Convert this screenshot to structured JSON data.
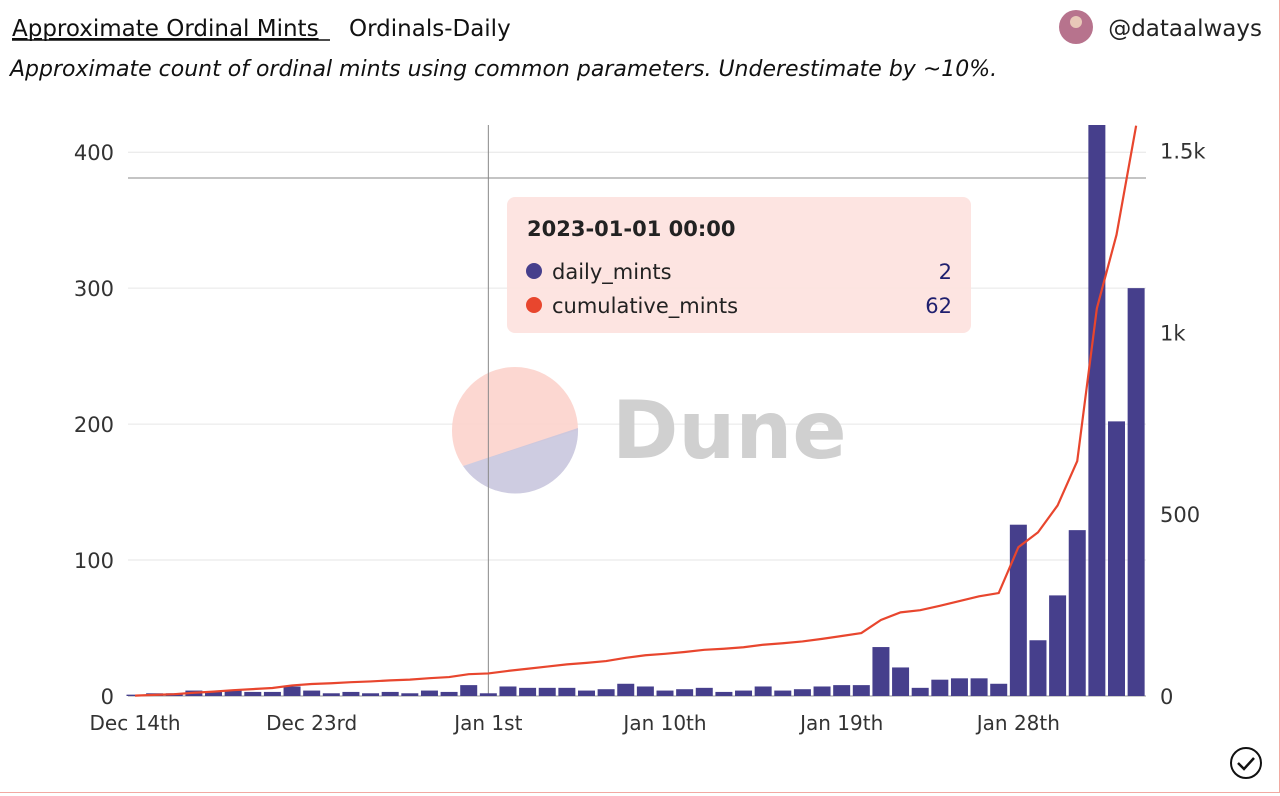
{
  "header": {
    "title": "Approximate Ordinal Mints",
    "tab": "Ordinals-Daily",
    "author": "@dataalways",
    "subtitle": "Approximate count of ordinal mints using common parameters. Underestimate by ~10%."
  },
  "chart_data": {
    "type": "bar-line",
    "categories": [
      "Dec 14th",
      null,
      null,
      null,
      null,
      null,
      null,
      null,
      null,
      "Dec 23rd",
      null,
      null,
      null,
      null,
      null,
      null,
      null,
      null,
      "Jan 1st",
      null,
      null,
      null,
      null,
      null,
      null,
      null,
      null,
      "Jan 10th",
      null,
      null,
      null,
      null,
      null,
      null,
      null,
      null,
      "Jan 19th",
      null,
      null,
      null,
      null,
      null,
      null,
      null,
      null,
      "Jan 28th",
      null,
      null,
      null,
      null,
      null,
      null
    ],
    "series": [
      {
        "name": "daily_mints",
        "color": "#463f8c",
        "kind": "bar",
        "values": [
          1,
          2,
          2,
          4,
          3,
          4,
          3,
          3,
          7,
          4,
          2,
          3,
          2,
          3,
          2,
          4,
          3,
          8,
          2,
          7,
          6,
          6,
          6,
          4,
          5,
          9,
          7,
          4,
          5,
          6,
          3,
          4,
          7,
          4,
          5,
          7,
          8,
          8,
          36,
          21,
          6,
          12,
          13,
          13,
          9,
          126,
          41,
          74,
          122,
          420,
          202,
          300
        ]
      },
      {
        "name": "cumulative_mints",
        "color": "#e8462e",
        "kind": "line",
        "axis": "y2",
        "values": [
          1,
          3,
          5,
          9,
          12,
          16,
          19,
          22,
          29,
          33,
          35,
          38,
          40,
          43,
          45,
          49,
          52,
          60,
          62,
          69,
          75,
          81,
          87,
          91,
          96,
          105,
          112,
          116,
          121,
          127,
          130,
          134,
          141,
          145,
          150,
          157,
          165,
          173,
          209,
          230,
          236,
          248,
          261,
          274,
          283,
          409,
          450,
          524,
          646,
          1066,
          1268,
          1568
        ]
      }
    ],
    "ylim": [
      0,
      420
    ],
    "yticks": [
      0,
      100,
      200,
      300,
      400
    ],
    "y2lim": [
      0,
      1570
    ],
    "y2ticks": [
      0,
      500,
      {
        "value": 1000,
        "label": "1k"
      },
      {
        "value": 1500,
        "label": "1.5k"
      }
    ],
    "grid": true,
    "tooltip": {
      "title": "2023-01-01 00:00",
      "index": 18
    },
    "watermark": "Dune"
  }
}
